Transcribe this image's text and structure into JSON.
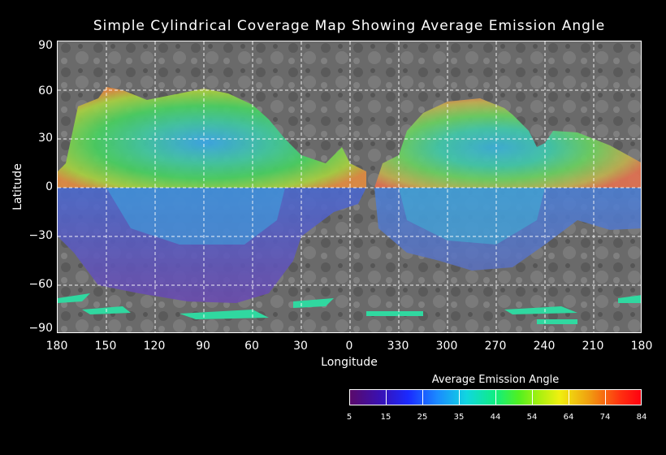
{
  "map": {
    "title": "Simple Cylindrical Coverage Map Showing Average Emission Angle",
    "xlabel": "Longitude",
    "ylabel": "Latitude",
    "lat_ticks": [
      "90",
      "60",
      "30",
      "0",
      "−30",
      "−60",
      "−90"
    ],
    "lon_ticks": [
      "180",
      "150",
      "120",
      "90",
      "60",
      "30",
      "0",
      "330",
      "300",
      "270",
      "240",
      "210",
      "180"
    ],
    "grid": true
  },
  "colorbar": {
    "title": "Average Emission Angle",
    "ticks": [
      "5",
      "15",
      "25",
      "35",
      "44",
      "54",
      "64",
      "74",
      "84"
    ]
  },
  "colors": {
    "background": "#000000",
    "grid": "#ffffff",
    "basemap": "#6b6b6b"
  }
}
